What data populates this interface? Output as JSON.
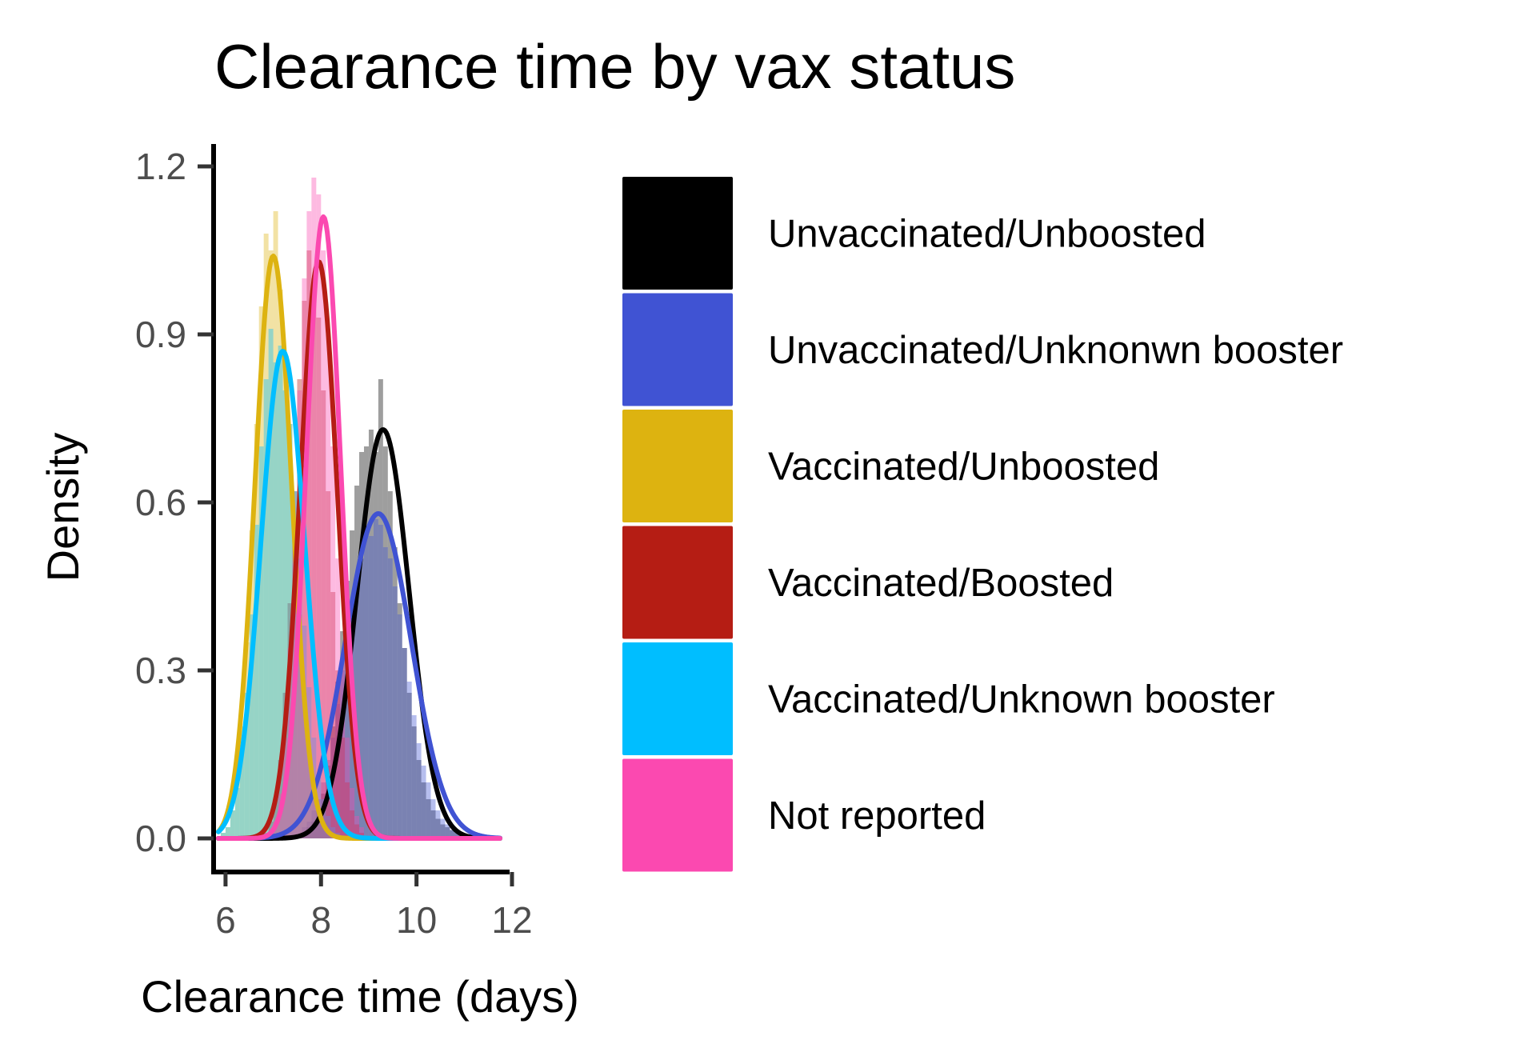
{
  "chart_data": {
    "type": "histogram-density",
    "title": "Clearance time by vax status",
    "xlabel": "Clearance time (days)",
    "ylabel": "Density",
    "xlim": [
      5.75,
      11.95
    ],
    "ylim": [
      -0.06,
      1.24
    ],
    "x_ticks": [
      6,
      8,
      10,
      12
    ],
    "x_tick_labels": [
      "6",
      "8",
      "10",
      "12"
    ],
    "y_ticks": [
      0.0,
      0.3,
      0.6,
      0.9,
      1.2
    ],
    "y_tick_labels": [
      "0.0",
      "0.3",
      "0.6",
      "0.9",
      "1.2"
    ],
    "grid": false,
    "legend_position": "right",
    "series": [
      {
        "name": "Unvaccinated/Unboosted",
        "color": "#000000",
        "mean": 9.3,
        "sd": 0.545,
        "peak": 0.73,
        "hist_start": 6.3,
        "bin_width": 0.1,
        "hist": [
          0,
          0,
          0,
          0,
          0,
          0,
          0,
          0,
          0,
          0,
          0,
          0,
          0.005,
          0.01,
          0.02,
          0.03,
          0.05,
          0.08,
          0.13,
          0.2,
          0.28,
          0.37,
          0.46,
          0.55,
          0.63,
          0.69,
          0.7,
          0.73,
          0.69,
          0.82,
          0.7,
          0.62,
          0.52,
          0.42,
          0.34,
          0.26,
          0.2,
          0.14,
          0.1,
          0.07,
          0.05,
          0.035,
          0.025,
          0.02,
          0.015,
          0.01,
          0.005,
          0.005
        ]
      },
      {
        "name": "Unvaccinated/Unknonwn booster",
        "color": "#4053d3",
        "mean": 9.2,
        "sd": 0.69,
        "peak": 0.58,
        "hist_start": 7.6,
        "bin_width": 0.1,
        "hist": [
          0.02,
          0.03,
          0.05,
          0.07,
          0.1,
          0.14,
          0.18,
          0.24,
          0.3,
          0.35,
          0.42,
          0.46,
          0.5,
          0.55,
          0.54,
          0.57,
          0.56,
          0.52,
          0.5,
          0.45,
          0.4,
          0.34,
          0.28,
          0.22,
          0.17,
          0.13,
          0.1,
          0.07,
          0.05,
          0.035,
          0.025,
          0.015,
          0.01,
          0.005
        ]
      },
      {
        "name": "Vaccinated/Unboosted",
        "color": "#ddb310",
        "mean": 7.0,
        "sd": 0.385,
        "peak": 1.04,
        "hist_start": 5.9,
        "bin_width": 0.1,
        "hist": [
          0.01,
          0.02,
          0.05,
          0.1,
          0.2,
          0.35,
          0.55,
          0.74,
          0.95,
          1.08,
          1.05,
          1.12,
          0.98,
          0.86,
          0.74,
          0.54,
          0.4,
          0.26,
          0.16,
          0.09,
          0.05,
          0.03,
          0.015,
          0.01
        ]
      },
      {
        "name": "Vaccinated/Boosted",
        "color": "#b51d14",
        "mean": 7.95,
        "sd": 0.39,
        "peak": 1.03,
        "hist_start": 6.8,
        "bin_width": 0.1,
        "hist": [
          0.01,
          0.03,
          0.07,
          0.14,
          0.26,
          0.42,
          0.62,
          0.82,
          0.96,
          1.05,
          1.0,
          0.93,
          0.8,
          0.62,
          0.44,
          0.3,
          0.18,
          0.1,
          0.05,
          0.025,
          0.01
        ]
      },
      {
        "name": "Vaccinated/Unknown booster",
        "color": "#00beff",
        "mean": 7.2,
        "sd": 0.46,
        "peak": 0.87,
        "hist_start": 5.9,
        "bin_width": 0.1,
        "hist": [
          0.01,
          0.02,
          0.05,
          0.09,
          0.16,
          0.26,
          0.4,
          0.56,
          0.7,
          0.82,
          0.91,
          0.85,
          0.88,
          0.8,
          0.74,
          0.62,
          0.5,
          0.38,
          0.27,
          0.18,
          0.11,
          0.07,
          0.04,
          0.02,
          0.01
        ]
      },
      {
        "name": "Not reported",
        "color": "#fb49b0",
        "mean": 8.05,
        "sd": 0.36,
        "peak": 1.11,
        "hist_start": 6.9,
        "bin_width": 0.1,
        "hist": [
          0.01,
          0.03,
          0.08,
          0.18,
          0.34,
          0.55,
          0.8,
          1.0,
          1.12,
          1.18,
          1.15,
          1.05,
          0.9,
          0.7,
          0.5,
          0.32,
          0.18,
          0.09,
          0.04,
          0.02
        ]
      }
    ]
  }
}
